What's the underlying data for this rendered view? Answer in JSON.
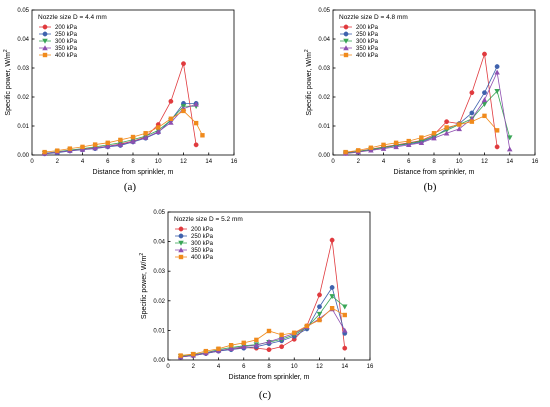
{
  "chart_data": [
    {
      "type": "line",
      "panel_label": "(a)",
      "annotation": "Nozzle size D = 4.4 mm",
      "xlabel": "Distance from sprinkler, m",
      "ylabel": "Specific power, W/m",
      "ylabel_sup": "2",
      "xlim": [
        0,
        16
      ],
      "ylim": [
        0,
        0.05
      ],
      "xticks": [
        "0",
        "2",
        "4",
        "6",
        "8",
        "10",
        "12",
        "14",
        "16"
      ],
      "yticks": [
        "0.00",
        "0.01",
        "0.02",
        "0.03",
        "0.04",
        "0.05"
      ],
      "legend_position": "top-left",
      "series": [
        {
          "name": "200 kPa",
          "color": "#e03a3e",
          "marker": "circle",
          "x": [
            1,
            2,
            3,
            4,
            5,
            6,
            7,
            8,
            9,
            10,
            11,
            12,
            13
          ],
          "y": [
            0.0005,
            0.001,
            0.0015,
            0.002,
            0.0025,
            0.003,
            0.0038,
            0.0048,
            0.0062,
            0.0105,
            0.0185,
            0.0315,
            0.0035
          ]
        },
        {
          "name": "250 kPa",
          "color": "#3f62ad",
          "marker": "circle",
          "x": [
            1,
            2,
            3,
            4,
            5,
            6,
            7,
            8,
            9,
            10,
            11,
            12,
            13
          ],
          "y": [
            0.0004,
            0.0008,
            0.0014,
            0.0018,
            0.0022,
            0.0028,
            0.0033,
            0.0045,
            0.0058,
            0.0078,
            0.012,
            0.0178,
            0.0178
          ]
        },
        {
          "name": "300 kPa",
          "color": "#3aa657",
          "marker": "triangle-down",
          "x": [
            1,
            2,
            3,
            4,
            5,
            6,
            7,
            8,
            9,
            10,
            11,
            12,
            13
          ],
          "y": [
            0.0006,
            0.0011,
            0.0017,
            0.0022,
            0.0028,
            0.0035,
            0.0042,
            0.0053,
            0.0065,
            0.0085,
            0.012,
            0.0168,
            0.0168
          ]
        },
        {
          "name": "350 kPa",
          "color": "#8e4fb0",
          "marker": "triangle-up",
          "x": [
            1,
            2,
            3,
            4,
            5,
            6,
            7,
            8,
            9,
            10,
            11,
            12,
            13
          ],
          "y": [
            0.0005,
            0.001,
            0.0015,
            0.0019,
            0.0024,
            0.003,
            0.0036,
            0.0047,
            0.006,
            0.008,
            0.0112,
            0.016,
            0.0175
          ]
        },
        {
          "name": "400 kPa",
          "color": "#f08a1c",
          "marker": "square",
          "x": [
            1,
            2,
            3,
            4,
            5,
            6,
            7,
            8,
            9,
            10,
            11,
            12,
            13,
            13.5
          ],
          "y": [
            0.001,
            0.0015,
            0.0022,
            0.0028,
            0.0036,
            0.0042,
            0.0052,
            0.0062,
            0.0075,
            0.0095,
            0.0125,
            0.0152,
            0.011,
            0.0068
          ]
        }
      ]
    },
    {
      "type": "line",
      "panel_label": "(b)",
      "annotation": "Nozzle size D = 4.8 mm",
      "xlabel": "Distance from sprinkler, m",
      "ylabel": "Specific power, W/m",
      "ylabel_sup": "2",
      "xlim": [
        0,
        16
      ],
      "ylim": [
        0,
        0.05
      ],
      "xticks": [
        "0",
        "2",
        "4",
        "6",
        "8",
        "10",
        "12",
        "14",
        "16"
      ],
      "yticks": [
        "0.00",
        "0.01",
        "0.02",
        "0.03",
        "0.04",
        "0.05"
      ],
      "legend_position": "top-left",
      "series": [
        {
          "name": "200 kPa",
          "color": "#e03a3e",
          "marker": "circle",
          "x": [
            1,
            2,
            3,
            4,
            5,
            6,
            7,
            8,
            9,
            10,
            11,
            12,
            13
          ],
          "y": [
            0.0008,
            0.0013,
            0.002,
            0.0028,
            0.0035,
            0.0042,
            0.005,
            0.007,
            0.0115,
            0.0108,
            0.0215,
            0.0348,
            0.0028
          ]
        },
        {
          "name": "250 kPa",
          "color": "#3f62ad",
          "marker": "circle",
          "x": [
            1,
            2,
            3,
            4,
            5,
            6,
            7,
            8,
            9,
            10,
            11,
            12,
            13
          ],
          "y": [
            0.0006,
            0.0011,
            0.0018,
            0.0025,
            0.0032,
            0.0038,
            0.0045,
            0.0062,
            0.009,
            0.0108,
            0.0145,
            0.0215,
            0.0305
          ]
        },
        {
          "name": "300 kPa",
          "color": "#3aa657",
          "marker": "triangle-down",
          "x": [
            1,
            2,
            3,
            4,
            5,
            6,
            7,
            8,
            9,
            10,
            11,
            12,
            13,
            14
          ],
          "y": [
            0.0007,
            0.0012,
            0.0019,
            0.0026,
            0.0033,
            0.004,
            0.0048,
            0.0065,
            0.0085,
            0.0105,
            0.0125,
            0.0175,
            0.022,
            0.006
          ]
        },
        {
          "name": "350 kPa",
          "color": "#8e4fb0",
          "marker": "triangle-up",
          "x": [
            1,
            2,
            3,
            4,
            5,
            6,
            7,
            8,
            9,
            10,
            11,
            12,
            13,
            14
          ],
          "y": [
            0.0005,
            0.001,
            0.0016,
            0.0022,
            0.0028,
            0.0035,
            0.0042,
            0.0058,
            0.0075,
            0.009,
            0.0125,
            0.019,
            0.0285,
            0.002
          ]
        },
        {
          "name": "400 kPa",
          "color": "#f08a1c",
          "marker": "square",
          "x": [
            1,
            2,
            3,
            4,
            5,
            6,
            7,
            8,
            9,
            10,
            11,
            12,
            13
          ],
          "y": [
            0.001,
            0.0016,
            0.0025,
            0.0035,
            0.0042,
            0.0048,
            0.006,
            0.0075,
            0.0095,
            0.0105,
            0.0115,
            0.0135,
            0.0085
          ]
        }
      ]
    },
    {
      "type": "line",
      "panel_label": "(c)",
      "annotation": "Nozzle size D = 5.2 mm",
      "xlabel": "Distance from sprinkler, m",
      "ylabel": "Specific power, W/m",
      "ylabel_sup": "2",
      "xlim": [
        0,
        16
      ],
      "ylim": [
        0,
        0.05
      ],
      "xticks": [
        "0",
        "2",
        "4",
        "6",
        "8",
        "10",
        "12",
        "14",
        "16"
      ],
      "yticks": [
        "0.00",
        "0.01",
        "0.02",
        "0.03",
        "0.04",
        "0.05"
      ],
      "legend_position": "top-left",
      "series": [
        {
          "name": "200 kPa",
          "color": "#e03a3e",
          "marker": "circle",
          "x": [
            1,
            2,
            3,
            4,
            5,
            6,
            7,
            8,
            9,
            10,
            11,
            12,
            13,
            14
          ],
          "y": [
            0.001,
            0.0015,
            0.0022,
            0.003,
            0.0038,
            0.0042,
            0.004,
            0.0035,
            0.0045,
            0.007,
            0.0115,
            0.022,
            0.0405,
            0.004
          ]
        },
        {
          "name": "250 kPa",
          "color": "#3f62ad",
          "marker": "circle",
          "x": [
            1,
            2,
            3,
            4,
            5,
            6,
            7,
            8,
            9,
            10,
            11,
            12,
            13,
            14
          ],
          "y": [
            0.001,
            0.0015,
            0.0022,
            0.003,
            0.0035,
            0.004,
            0.0045,
            0.0055,
            0.0065,
            0.008,
            0.0105,
            0.018,
            0.0245,
            0.009
          ]
        },
        {
          "name": "300 kPa",
          "color": "#3aa657",
          "marker": "triangle-down",
          "x": [
            1,
            2,
            3,
            4,
            5,
            6,
            7,
            8,
            9,
            10,
            11,
            12,
            13,
            14
          ],
          "y": [
            0.0012,
            0.0018,
            0.0025,
            0.0035,
            0.0042,
            0.0048,
            0.0052,
            0.006,
            0.007,
            0.0085,
            0.011,
            0.0155,
            0.0215,
            0.018
          ]
        },
        {
          "name": "350 kPa",
          "color": "#8e4fb0",
          "marker": "triangle-up",
          "x": [
            1,
            2,
            3,
            4,
            5,
            6,
            7,
            8,
            9,
            10,
            11,
            12,
            13,
            14
          ],
          "y": [
            0.001,
            0.0016,
            0.0024,
            0.0032,
            0.0038,
            0.0045,
            0.005,
            0.0062,
            0.0075,
            0.009,
            0.0112,
            0.014,
            0.0172,
            0.01
          ]
        },
        {
          "name": "400 kPa",
          "color": "#f08a1c",
          "marker": "square",
          "x": [
            1,
            2,
            3,
            4,
            5,
            6,
            7,
            8,
            9,
            10,
            11,
            12,
            13,
            14
          ],
          "y": [
            0.0015,
            0.002,
            0.003,
            0.0038,
            0.005,
            0.0058,
            0.0068,
            0.0098,
            0.0085,
            0.0092,
            0.0115,
            0.0135,
            0.0175,
            0.0152
          ]
        }
      ]
    }
  ]
}
